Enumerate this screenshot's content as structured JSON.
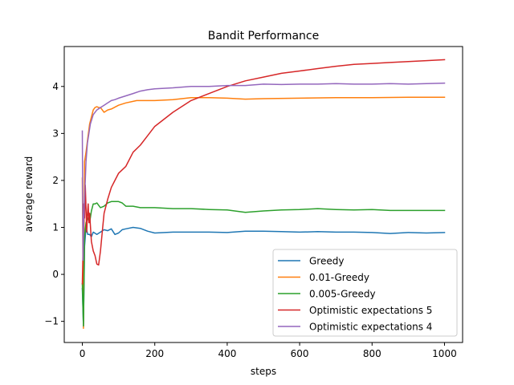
{
  "chart_data": {
    "type": "line",
    "title": "Bandit Performance",
    "xlabel": "steps",
    "ylabel": "average reward",
    "xlim": [
      -50,
      1050
    ],
    "ylim": [
      -1.45,
      4.85
    ],
    "xticks": [
      0,
      200,
      400,
      600,
      800,
      1000
    ],
    "yticks": [
      -1,
      0,
      1,
      2,
      3,
      4
    ],
    "xtick_labels": [
      "0",
      "200",
      "400",
      "600",
      "800",
      "1000"
    ],
    "ytick_labels": [
      "−1",
      "0",
      "1",
      "2",
      "3",
      "4"
    ],
    "grid": false,
    "legend_position": "lower-right",
    "series": [
      {
        "name": "Greedy",
        "color": "#1f77b4",
        "x": [
          0,
          3,
          6,
          10,
          15,
          20,
          25,
          30,
          40,
          50,
          60,
          70,
          80,
          90,
          100,
          110,
          120,
          140,
          160,
          180,
          200,
          250,
          300,
          350,
          400,
          450,
          500,
          550,
          600,
          650,
          700,
          750,
          800,
          850,
          900,
          950,
          1000
        ],
        "y": [
          -0.3,
          -1.1,
          0.6,
          1.0,
          0.85,
          0.85,
          0.8,
          0.9,
          0.85,
          0.9,
          0.95,
          0.93,
          0.97,
          0.85,
          0.88,
          0.95,
          0.97,
          1.0,
          0.98,
          0.92,
          0.88,
          0.9,
          0.9,
          0.9,
          0.89,
          0.92,
          0.92,
          0.91,
          0.9,
          0.91,
          0.9,
          0.9,
          0.89,
          0.87,
          0.89,
          0.88,
          0.89
        ]
      },
      {
        "name": "0.01-Greedy",
        "color": "#ff7f0e",
        "x": [
          0,
          3,
          6,
          10,
          15,
          20,
          25,
          30,
          35,
          40,
          45,
          50,
          60,
          70,
          80,
          100,
          120,
          150,
          200,
          250,
          300,
          350,
          400,
          450,
          500,
          600,
          700,
          800,
          900,
          1000
        ],
        "y": [
          2.05,
          -1.15,
          2.4,
          2.6,
          2.9,
          3.2,
          3.35,
          3.5,
          3.55,
          3.57,
          3.55,
          3.55,
          3.45,
          3.5,
          3.52,
          3.6,
          3.65,
          3.7,
          3.7,
          3.72,
          3.76,
          3.76,
          3.75,
          3.73,
          3.74,
          3.75,
          3.76,
          3.76,
          3.77,
          3.77
        ]
      },
      {
        "name": "0.005-Greedy",
        "color": "#2ca02c",
        "x": [
          0,
          3,
          6,
          10,
          15,
          20,
          25,
          30,
          35,
          40,
          50,
          60,
          70,
          80,
          100,
          110,
          120,
          140,
          160,
          180,
          200,
          250,
          300,
          350,
          400,
          450,
          500,
          550,
          600,
          650,
          700,
          750,
          800,
          850,
          900,
          950,
          1000
        ],
        "y": [
          -0.2,
          -1.1,
          0.8,
          1.1,
          1.2,
          1.1,
          1.35,
          1.5,
          1.5,
          1.52,
          1.42,
          1.45,
          1.52,
          1.55,
          1.55,
          1.52,
          1.45,
          1.45,
          1.42,
          1.42,
          1.42,
          1.4,
          1.4,
          1.38,
          1.37,
          1.32,
          1.35,
          1.37,
          1.38,
          1.4,
          1.38,
          1.37,
          1.38,
          1.36,
          1.36,
          1.36,
          1.36
        ]
      },
      {
        "name": "Optimistic expectations 5",
        "color": "#d62728",
        "x": [
          0,
          2,
          4,
          6,
          8,
          10,
          12,
          14,
          16,
          18,
          20,
          25,
          30,
          35,
          40,
          45,
          50,
          55,
          60,
          70,
          80,
          90,
          100,
          120,
          140,
          160,
          180,
          200,
          250,
          300,
          350,
          400,
          450,
          500,
          550,
          600,
          650,
          700,
          750,
          800,
          850,
          900,
          950,
          1000
        ],
        "y": [
          -0.2,
          0.5,
          1.5,
          1.2,
          1.9,
          1.4,
          0.9,
          1.3,
          1.5,
          1.1,
          1.3,
          0.7,
          0.5,
          0.4,
          0.22,
          0.2,
          0.5,
          0.9,
          1.3,
          1.6,
          1.85,
          2.0,
          2.15,
          2.3,
          2.6,
          2.75,
          2.95,
          3.15,
          3.45,
          3.7,
          3.85,
          4.0,
          4.12,
          4.2,
          4.28,
          4.33,
          4.38,
          4.43,
          4.47,
          4.49,
          4.51,
          4.53,
          4.55,
          4.57
        ]
      },
      {
        "name": "Optimistic expectations 4",
        "color": "#9467bd",
        "x": [
          0,
          2,
          4,
          6,
          8,
          10,
          14,
          18,
          22,
          26,
          30,
          40,
          50,
          60,
          70,
          80,
          90,
          100,
          120,
          140,
          160,
          180,
          200,
          250,
          300,
          350,
          400,
          450,
          500,
          550,
          600,
          650,
          700,
          750,
          800,
          850,
          900,
          950,
          1000
        ],
        "y": [
          3.05,
          0.3,
          1.1,
          1.6,
          2.0,
          2.4,
          2.8,
          3.0,
          3.2,
          3.3,
          3.4,
          3.5,
          3.55,
          3.6,
          3.65,
          3.7,
          3.72,
          3.75,
          3.8,
          3.85,
          3.9,
          3.93,
          3.95,
          3.97,
          4.0,
          4.0,
          4.02,
          4.02,
          4.05,
          4.04,
          4.05,
          4.05,
          4.06,
          4.05,
          4.05,
          4.06,
          4.05,
          4.06,
          4.07
        ]
      }
    ]
  }
}
